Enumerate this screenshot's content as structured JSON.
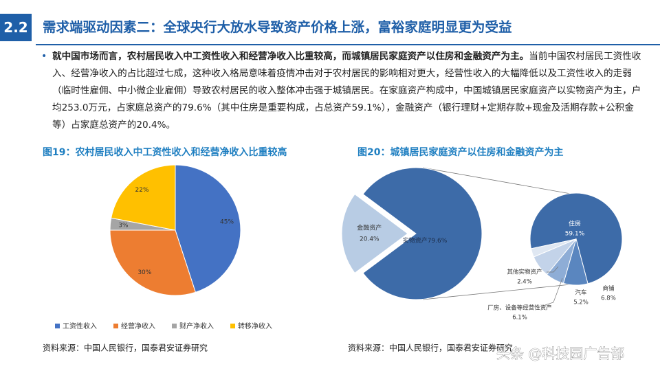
{
  "header": {
    "number": "2.2",
    "title": "需求端驱动因素二：全球央行大放水导致资产价格上涨，富裕家庭明显更为受益"
  },
  "bullet": {
    "bold": "就中国市场而言，农村居民收入中工资性收入和经营净收入比重较高，而城镇居民家庭资产以住房和金融资产为主。",
    "text": "当前中国农村居民工资性收入、经营净收入的占比超过七成，这种收入格局意味着疫情冲击对于农村居民的影响相对更大，经营性收入的大幅降低以及工资性收入的走弱（临时性雇佣、中小微企业雇佣）导致农村居民的收入整体冲击强于城镇居民。在家庭资产构成中，中国城镇居民家庭资产以实物资产为主，户均253.0万元，占家庭总资产的79.6%（其中住房是重要构成，占总资产59.1%），金融资产（银行理财+定期存款+现金及活期存款+公积金等）占家庭总资产的20.4%。"
  },
  "chart_data": [
    {
      "type": "pie",
      "title": "图19：农村居民收入中工资性收入和经营净收入比重较高",
      "categories": [
        "工资性收入",
        "经营净收入",
        "财产净收入",
        "转移净收入"
      ],
      "values": [
        45,
        30,
        3,
        22
      ],
      "value_labels": [
        "45%",
        "30%",
        "3%",
        "22%"
      ],
      "colors": [
        "#4472c4",
        "#ed7d31",
        "#a5a5a5",
        "#ffc000"
      ],
      "legend": "bottom",
      "source": "资料来源：中国人民银行，国泰君安证券研究"
    },
    {
      "type": "pie",
      "title": "图20：城镇居民家庭资产以住房和金融资产为主",
      "categories": [
        "金融资产",
        "实物资产"
      ],
      "values": [
        20.4,
        79.6
      ],
      "value_labels": [
        "20.4%",
        "79.6%"
      ],
      "colors": [
        "#b8cce4",
        "#3d6ba8"
      ],
      "breakdown": {
        "categories": [
          "住房",
          "商铺",
          "汽车",
          "厂房、设备等经营性资产",
          "其他实物资产"
        ],
        "values": [
          59.1,
          6.8,
          5.2,
          6.1,
          2.4
        ],
        "value_labels": [
          "59.1%",
          "6.8%",
          "5.2%",
          "6.1%",
          "2.4%"
        ],
        "colors": [
          "#3d6ba8",
          "#5a86bf",
          "#8eadd6",
          "#c3d3e9",
          "#dfe7f2"
        ]
      },
      "source": "资料来源：中国人民银行，国泰君安证券研究"
    }
  ],
  "watermark": "头条 @科技园广告部"
}
